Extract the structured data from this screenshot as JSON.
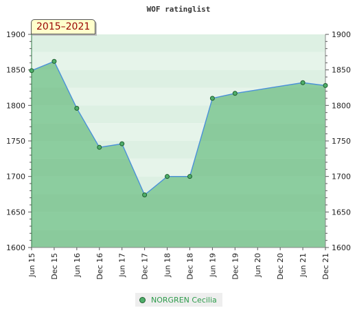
{
  "chart_data": {
    "type": "area",
    "title": "WOF ratinglist",
    "period": "2015–2021",
    "x": [
      "Jun 15",
      "Dec 15",
      "Jun 16",
      "Dec 16",
      "Jun 17",
      "Dec 17",
      "Jun 18",
      "Dec 18",
      "Jun 19",
      "Dec 19",
      "Jun 21",
      "Dec 21"
    ],
    "xticks": [
      "Jun 15",
      "Dec 15",
      "Jun 16",
      "Dec 16",
      "Jun 17",
      "Dec 17",
      "Jun 18",
      "Dec 18",
      "Jun 19",
      "Dec 19",
      "Jun 20",
      "Dec 20",
      "Jun 21",
      "Dec 21"
    ],
    "yticks": [
      1600,
      1650,
      1700,
      1750,
      1800,
      1850,
      1900
    ],
    "ylim": [
      1600,
      1900
    ],
    "series": [
      {
        "name": "NORGREN Cecilia",
        "values": [
          1849,
          1862,
          1796,
          1741,
          1746,
          1674,
          1700,
          1700,
          1810,
          1817,
          1832,
          1828
        ]
      }
    ],
    "legend_position": "bottom-center",
    "grid": true,
    "colors": {
      "line": "#4a90d9",
      "area": "#6cbf84",
      "marker": "#4fae6a",
      "marker_stroke": "#1e5e2e"
    }
  }
}
